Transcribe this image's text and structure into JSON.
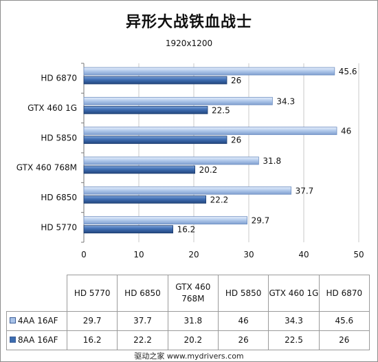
{
  "chart_data": {
    "type": "bar",
    "orientation": "horizontal",
    "title": "异形大战铁血战士",
    "subtitle": "1920x1200",
    "categories": [
      "HD 6870",
      "GTX 460 1G",
      "HD 5850",
      "GTX 460 768M",
      "HD 6850",
      "HD 5770"
    ],
    "series": [
      {
        "name": "4AA 16AF",
        "color": "#a9c3e8",
        "values": [
          45.6,
          34.3,
          46,
          31.8,
          37.7,
          29.7
        ]
      },
      {
        "name": "8AA 16AF",
        "color": "#3d6db0",
        "values": [
          26,
          22.5,
          26,
          20.2,
          22.2,
          16.2
        ]
      }
    ],
    "xlim": [
      0,
      50
    ],
    "xticks": [
      "0",
      "10",
      "20",
      "30",
      "40",
      "50"
    ],
    "grid": true,
    "legend": "data-table-below"
  },
  "table": {
    "columns": [
      "HD 5770",
      "HD 6850",
      "GTX 460 768M",
      "HD 5850",
      "GTX 460 1G",
      "HD 6870"
    ],
    "rows": [
      {
        "label": "4AA 16AF",
        "values": [
          "29.7",
          "37.7",
          "31.8",
          "46",
          "34.3",
          "45.6"
        ]
      },
      {
        "label": "8AA 16AF",
        "values": [
          "16.2",
          "22.2",
          "20.2",
          "26",
          "22.5",
          "26"
        ]
      }
    ]
  },
  "footer": "驱动之家    www.mydrivers.com"
}
